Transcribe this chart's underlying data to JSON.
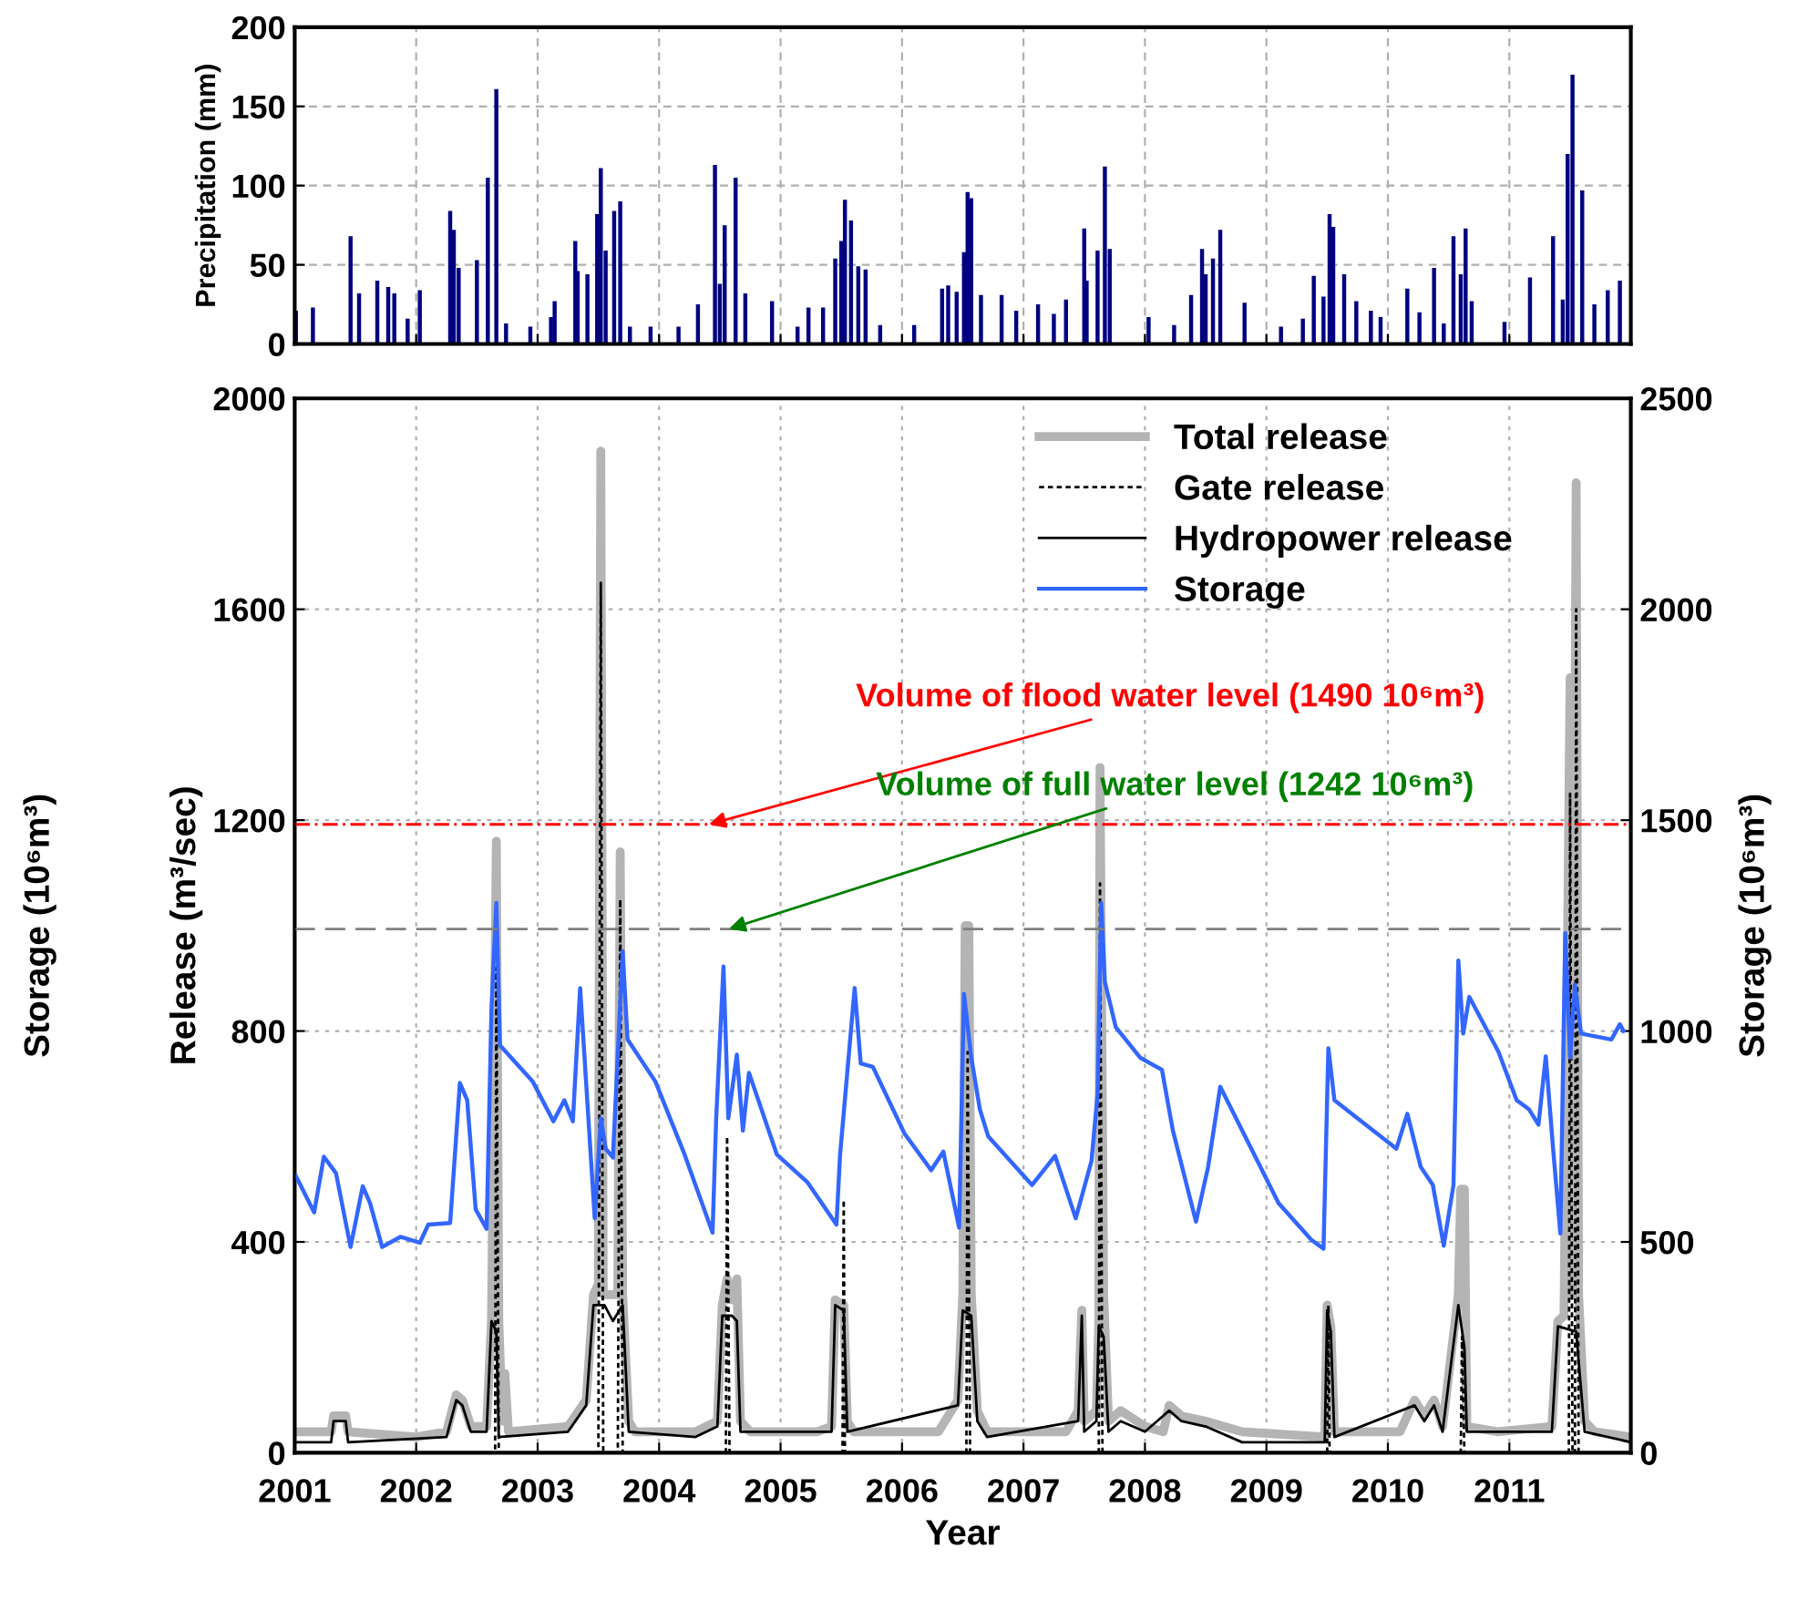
{
  "chart_data": [
    {
      "type": "bar",
      "ylabel": "Precipitation (mm)",
      "xlim": [
        2001,
        2012
      ],
      "xticks": [
        2001,
        2002,
        2003,
        2004,
        2005,
        2006,
        2007,
        2008,
        2009,
        2010,
        2011,
        2012
      ],
      "ylim": [
        0,
        200
      ],
      "yticks": [
        0,
        50,
        100,
        150,
        200
      ],
      "grid": true,
      "tick_labels": "y",
      "legend": false,
      "series": [
        {
          "color": "#000080",
          "x": [
            2001.01,
            2001.15,
            2001.46,
            2001.53,
            2001.68,
            2001.77,
            2001.82,
            2001.93,
            2002.03,
            2002.28,
            2002.31,
            2002.35,
            2002.5,
            2002.59,
            2002.66,
            2002.74,
            2002.94,
            2003.11,
            2003.14,
            2003.31,
            2003.33,
            2003.41,
            2003.49,
            2003.52,
            2003.56,
            2003.63,
            2003.68,
            2003.76,
            2003.93,
            2004.16,
            2004.32,
            2004.46,
            2004.5,
            2004.54,
            2004.63,
            2004.71,
            2004.93,
            2005.14,
            2005.23,
            2005.35,
            2005.45,
            2005.5,
            2005.53,
            2005.58,
            2005.64,
            2005.7,
            2005.82,
            2006.1,
            2006.33,
            2006.38,
            2006.45,
            2006.51,
            2006.54,
            2006.57,
            2006.65,
            2006.82,
            2006.94,
            2007.12,
            2007.25,
            2007.35,
            2007.5,
            2007.52,
            2007.61,
            2007.67,
            2007.71,
            2008.03,
            2008.24,
            2008.38,
            2008.47,
            2008.5,
            2008.56,
            2008.62,
            2008.82,
            2009.12,
            2009.3,
            2009.39,
            2009.47,
            2009.52,
            2009.55,
            2009.64,
            2009.74,
            2009.86,
            2009.94,
            2010.16,
            2010.26,
            2010.38,
            2010.46,
            2010.54,
            2010.6,
            2010.64,
            2010.69,
            2010.96,
            2011.17,
            2011.36,
            2011.44,
            2011.48,
            2011.52,
            2011.6,
            2011.7,
            2011.81,
            2011.91
          ],
          "values": [
            21,
            23,
            68,
            32,
            40,
            36,
            32,
            16,
            34,
            84,
            72,
            48,
            53,
            105,
            161,
            13,
            11,
            17,
            27,
            65,
            46,
            44,
            82,
            111,
            59,
            84,
            90,
            11,
            11,
            11,
            25,
            113,
            38,
            75,
            105,
            32,
            27,
            11,
            23,
            23,
            54,
            65,
            91,
            78,
            49,
            47,
            12,
            12,
            35,
            37,
            33,
            58,
            96,
            92,
            31,
            31,
            21,
            25,
            19,
            28,
            73,
            40,
            59,
            112,
            60,
            17,
            12,
            31,
            60,
            44,
            54,
            72,
            26,
            11,
            16,
            43,
            30,
            82,
            74,
            44,
            27,
            21,
            17,
            35,
            20,
            48,
            13,
            68,
            44,
            73,
            27,
            14,
            42,
            68,
            28,
            120,
            170,
            97,
            25,
            34,
            40
          ]
        }
      ]
    },
    {
      "type": "line",
      "xlabel": "Year",
      "ylabel": "Release (m³/sec)",
      "y2label": "Storage (10⁶m³)",
      "xlim": [
        2001,
        2012
      ],
      "xticks": [
        2001,
        2002,
        2003,
        2004,
        2005,
        2006,
        2007,
        2008,
        2009,
        2010,
        2011,
        {
          "value": 2012,
          "label": null
        }
      ],
      "ylim": [
        0,
        2000
      ],
      "yticks": [
        0,
        400,
        800,
        1200,
        1600,
        2000
      ],
      "y2lim": [
        0,
        2500
      ],
      "y2ticks": [
        0,
        500,
        1000,
        1500,
        2000,
        2500
      ],
      "grid": true,
      "legend": "top right",
      "ref_lines": [
        {
          "axis": "y2",
          "value": 1490,
          "label": "Volume of flood water level (1490 10⁶m³)",
          "color": "#ff0000",
          "line_style": "dashdot"
        },
        {
          "axis": "y2",
          "value": 1242,
          "label": "Volume of full water level (1242 10⁶m³)",
          "color": "#808080",
          "line_style": "dashed"
        }
      ],
      "annotations": [
        "Storage (10⁶m³)"
      ],
      "series": [
        {
          "name": "Total release",
          "color": "#b4b4b4",
          "x": [
            2001.0,
            2001.3,
            2001.32,
            2001.42,
            2001.44,
            2002.0,
            2002.25,
            2002.33,
            2002.38,
            2002.45,
            2002.58,
            2002.62,
            2002.66,
            2002.68,
            2002.71,
            2002.73,
            2002.76,
            2003.25,
            2003.4,
            2003.46,
            2003.5,
            2003.52,
            2003.54,
            2003.62,
            2003.66,
            2003.68,
            2003.7,
            2003.75,
            2003.8,
            2004.3,
            2004.48,
            2004.52,
            2004.56,
            2004.6,
            2004.64,
            2004.67,
            2004.75,
            2005.3,
            2005.42,
            2005.45,
            2005.52,
            2005.55,
            2005.6,
            2006.3,
            2006.46,
            2006.5,
            2006.52,
            2006.55,
            2006.57,
            2006.62,
            2006.7,
            2007.35,
            2007.45,
            2007.48,
            2007.5,
            2007.6,
            2007.62,
            2007.63,
            2007.66,
            2007.7,
            2007.8,
            2008.0,
            2008.15,
            2008.2,
            2008.3,
            2008.5,
            2008.8,
            2009.48,
            2009.5,
            2009.53,
            2009.56,
            2010.1,
            2010.22,
            2010.3,
            2010.38,
            2010.45,
            2010.58,
            2010.6,
            2010.63,
            2010.65,
            2010.9,
            2011.35,
            2011.4,
            2011.45,
            2011.5,
            2011.52,
            2011.55,
            2011.57,
            2011.62,
            2011.7,
            2012.0
          ],
          "values": [
            40,
            40,
            70,
            70,
            40,
            30,
            40,
            110,
            100,
            50,
            50,
            250,
            1160,
            250,
            60,
            150,
            40,
            50,
            100,
            300,
            320,
            1900,
            300,
            300,
            300,
            1140,
            300,
            60,
            40,
            40,
            60,
            280,
            330,
            290,
            330,
            60,
            40,
            40,
            50,
            290,
            280,
            60,
            40,
            40,
            100,
            300,
            1000,
            1000,
            300,
            80,
            40,
            40,
            80,
            270,
            60,
            80,
            250,
            1300,
            300,
            60,
            80,
            50,
            40,
            90,
            70,
            60,
            40,
            30,
            280,
            240,
            40,
            40,
            100,
            70,
            100,
            50,
            300,
            500,
            500,
            50,
            40,
            50,
            250,
            260,
            1470,
            300,
            1840,
            300,
            60,
            40,
            30
          ]
        },
        {
          "name": "Gate release",
          "color": "#000000",
          "line_style": "dotted",
          "x": [
            2001.0,
            2002.65,
            2002.66,
            2002.68,
            2003.5,
            2003.52,
            2003.54,
            2003.66,
            2003.68,
            2003.7,
            2004.55,
            2004.56,
            2004.58,
            2005.51,
            2005.52,
            2005.53,
            2006.53,
            2006.54,
            2006.56,
            2007.62,
            2007.63,
            2007.65,
            2009.5,
            2009.51,
            2009.52,
            2010.6,
            2010.61,
            2010.63,
            2011.49,
            2011.5,
            2011.52,
            2011.54,
            2011.55,
            2011.57,
            2012.0
          ],
          "values": [
            0,
            0,
            920,
            0,
            0,
            1650,
            0,
            0,
            1050,
            0,
            0,
            600,
            0,
            0,
            480,
            0,
            0,
            760,
            0,
            0,
            1080,
            0,
            0,
            280,
            0,
            0,
            220,
            0,
            0,
            1250,
            0,
            0,
            1600,
            0,
            0
          ]
        },
        {
          "name": "Hydropower release",
          "color": "#000000",
          "x": [
            2001.0,
            2001.3,
            2001.32,
            2001.42,
            2001.44,
            2002.25,
            2002.33,
            2002.38,
            2002.45,
            2002.58,
            2002.62,
            2002.66,
            2002.68,
            2003.25,
            2003.4,
            2003.46,
            2003.55,
            2003.62,
            2003.7,
            2003.75,
            2004.3,
            2004.48,
            2004.52,
            2004.6,
            2004.64,
            2004.67,
            2005.42,
            2005.45,
            2005.52,
            2005.55,
            2006.46,
            2006.5,
            2006.57,
            2006.62,
            2006.7,
            2007.45,
            2007.48,
            2007.5,
            2007.6,
            2007.62,
            2007.66,
            2007.7,
            2007.8,
            2008.0,
            2008.2,
            2008.3,
            2008.5,
            2008.8,
            2009.48,
            2009.5,
            2009.53,
            2009.56,
            2010.22,
            2010.3,
            2010.38,
            2010.45,
            2010.58,
            2010.63,
            2010.65,
            2011.35,
            2011.4,
            2011.55,
            2011.62,
            2012.0
          ],
          "values": [
            20,
            20,
            60,
            60,
            20,
            30,
            100,
            90,
            40,
            40,
            250,
            230,
            30,
            40,
            90,
            280,
            280,
            250,
            280,
            40,
            30,
            50,
            260,
            260,
            250,
            40,
            40,
            280,
            270,
            40,
            90,
            270,
            260,
            60,
            30,
            60,
            260,
            40,
            60,
            240,
            220,
            40,
            60,
            40,
            80,
            60,
            50,
            20,
            20,
            270,
            230,
            30,
            90,
            60,
            90,
            40,
            280,
            200,
            40,
            40,
            240,
            230,
            40,
            20
          ]
        },
        {
          "name": "Storage",
          "color": "#3366ff",
          "axis": "y2",
          "x": [
            2001.01,
            2001.16,
            2001.24,
            2001.34,
            2001.46,
            2001.56,
            2001.62,
            2001.72,
            2001.87,
            2002.03,
            2002.1,
            2002.28,
            2002.36,
            2002.42,
            2002.49,
            2002.58,
            2002.62,
            2002.66,
            2002.69,
            2002.96,
            2003.13,
            2003.22,
            2003.29,
            2003.35,
            2003.47,
            2003.52,
            2003.56,
            2003.62,
            2003.7,
            2003.74,
            2003.97,
            2004.21,
            2004.44,
            2004.47,
            2004.53,
            2004.57,
            2004.64,
            2004.69,
            2004.74,
            2004.97,
            2005.22,
            2005.46,
            2005.49,
            2005.61,
            2005.66,
            2005.76,
            2006.02,
            2006.24,
            2006.34,
            2006.47,
            2006.51,
            2006.57,
            2006.64,
            2006.71,
            2007.07,
            2007.26,
            2007.43,
            2007.56,
            2007.61,
            2007.64,
            2007.67,
            2007.76,
            2007.96,
            2008.14,
            2008.23,
            2008.42,
            2008.52,
            2008.62,
            2009.1,
            2009.37,
            2009.47,
            2009.51,
            2009.56,
            2010.07,
            2010.16,
            2010.27,
            2010.37,
            2010.46,
            2010.54,
            2010.58,
            2010.62,
            2010.67,
            2010.91,
            2011.06,
            2011.16,
            2011.24,
            2011.3,
            2011.36,
            2011.42,
            2011.46,
            2011.5,
            2011.54,
            2011.59,
            2011.84,
            2011.91,
            2011.94
          ],
          "values": [
            656,
            570,
            702,
            663,
            488,
            632,
            592,
            488,
            512,
            498,
            541,
            545,
            877,
            836,
            577,
            531,
            1052,
            1304,
            966,
            880,
            786,
            836,
            786,
            1102,
            556,
            793,
            721,
            700,
            1189,
            980,
            880,
            707,
            522,
            793,
            1153,
            793,
            944,
            764,
            901,
            707,
            642,
            541,
            707,
            1102,
            923,
            915,
            757,
            670,
            714,
            534,
            1088,
            937,
            815,
            750,
            635,
            704,
            556,
            692,
            851,
            1304,
            1117,
            1009,
            937,
            908,
            764,
            548,
            678,
            868,
            592,
            505,
            484,
            959,
            836,
            721,
            804,
            678,
            635,
            491,
            635,
            1167,
            994,
            1081,
            951,
            836,
            815,
            778,
            940,
            721,
            520,
            1232,
            937,
            1110,
            994,
            980,
            1016,
            1000
          ]
        }
      ]
    }
  ]
}
